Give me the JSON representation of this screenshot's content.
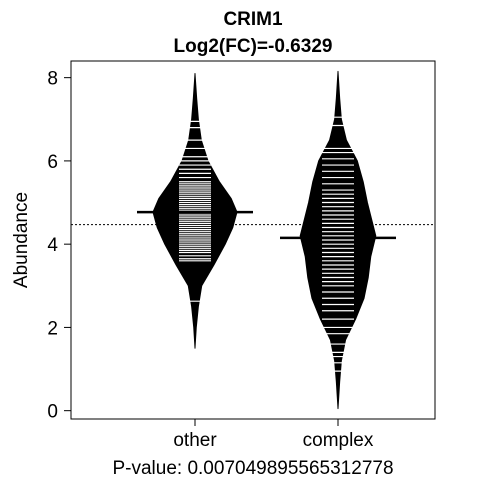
{
  "chart_data": {
    "type": "beanplot",
    "title": "CRIM1",
    "subtitle": "Log2(FC)=-0.6329",
    "ylabel": "Abundance",
    "xlabel": "P-value: 0.007049895565312778",
    "ylim": [
      -0.2,
      8.4
    ],
    "yticks": [
      0,
      2,
      4,
      6,
      8
    ],
    "ytick_labels": [
      "0",
      "2",
      "4",
      "6",
      "8"
    ],
    "categories": [
      "other",
      "complex"
    ],
    "overall_mean": 4.47,
    "colors": {
      "bean": "#000000",
      "strip": "#ffffff",
      "background": "#ffffff"
    },
    "series": [
      {
        "group": "other",
        "mean": 4.77,
        "min": 1.5,
        "max": 8.1,
        "density": [
          [
            1.5,
            0.0
          ],
          [
            2.0,
            0.03
          ],
          [
            2.5,
            0.08
          ],
          [
            3.0,
            0.16
          ],
          [
            3.5,
            0.45
          ],
          [
            4.0,
            0.72
          ],
          [
            4.4,
            0.9
          ],
          [
            4.77,
            1.0
          ],
          [
            5.1,
            0.86
          ],
          [
            5.5,
            0.58
          ],
          [
            6.0,
            0.31
          ],
          [
            6.5,
            0.15
          ],
          [
            7.0,
            0.08
          ],
          [
            7.5,
            0.04
          ],
          [
            8.1,
            0.0
          ]
        ],
        "points": [
          2.63,
          3.6,
          3.65,
          3.72,
          3.8,
          3.85,
          3.9,
          3.95,
          4.0,
          4.05,
          4.1,
          4.15,
          4.2,
          4.25,
          4.3,
          4.35,
          4.4,
          4.45,
          4.5,
          4.55,
          4.6,
          4.65,
          4.7,
          4.75,
          4.8,
          4.85,
          4.9,
          4.95,
          5.0,
          5.05,
          5.1,
          5.15,
          5.2,
          5.25,
          5.3,
          5.35,
          5.4,
          5.45,
          5.5,
          5.6,
          5.7,
          5.8,
          5.9,
          6.0,
          6.1,
          6.3,
          6.5,
          6.8,
          6.95
        ]
      },
      {
        "group": "complex",
        "mean": 4.15,
        "min": 0.05,
        "max": 8.15,
        "density": [
          [
            0.05,
            0.0
          ],
          [
            0.7,
            0.04
          ],
          [
            1.2,
            0.08
          ],
          [
            1.7,
            0.18
          ],
          [
            2.2,
            0.42
          ],
          [
            2.7,
            0.62
          ],
          [
            3.2,
            0.72
          ],
          [
            3.7,
            0.78
          ],
          [
            4.2,
            0.9
          ],
          [
            4.6,
            0.8
          ],
          [
            5.0,
            0.7
          ],
          [
            5.5,
            0.6
          ],
          [
            6.0,
            0.46
          ],
          [
            6.5,
            0.2
          ],
          [
            7.0,
            0.08
          ],
          [
            7.5,
            0.04
          ],
          [
            8.15,
            0.0
          ]
        ],
        "points": [
          0.95,
          1.15,
          1.3,
          1.4,
          1.6,
          1.85,
          2.0,
          2.2,
          2.4,
          2.55,
          2.7,
          2.85,
          3.0,
          3.1,
          3.2,
          3.3,
          3.4,
          3.5,
          3.6,
          3.7,
          3.8,
          3.9,
          4.0,
          4.1,
          4.2,
          4.3,
          4.4,
          4.5,
          4.6,
          4.7,
          4.8,
          4.9,
          5.0,
          5.1,
          5.2,
          5.3,
          5.45,
          5.6,
          5.75,
          5.9,
          6.05,
          6.2,
          6.3,
          6.85,
          7.05
        ]
      }
    ]
  }
}
